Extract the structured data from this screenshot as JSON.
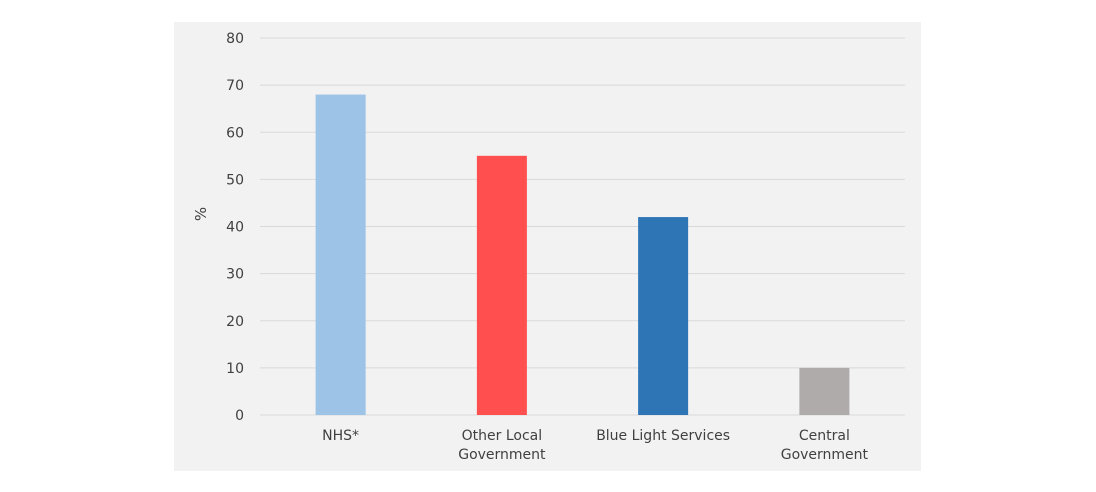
{
  "chart_data": {
    "type": "bar",
    "categories": [
      [
        "NHS*"
      ],
      [
        "Other Local",
        "Government"
      ],
      [
        "Blue Light Services"
      ],
      [
        "Central",
        "Government"
      ]
    ],
    "values": [
      68,
      55,
      42,
      10
    ],
    "colors": [
      "#9dc3e6",
      "#ff4f4f",
      "#2e75b6",
      "#afabab"
    ],
    "ylabel": "%",
    "ylim": [
      0,
      80
    ],
    "yticks": [
      0,
      10,
      20,
      30,
      40,
      50,
      60,
      70,
      80
    ],
    "grid": true,
    "legend": "none",
    "background": "#f2f2f2",
    "gridline_color": "#d9d9d9"
  }
}
